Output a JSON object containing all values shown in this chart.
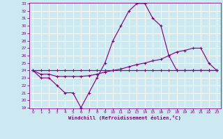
{
  "x": [
    0,
    1,
    2,
    3,
    4,
    5,
    6,
    7,
    8,
    9,
    10,
    11,
    12,
    13,
    14,
    15,
    16,
    17,
    18,
    19,
    20,
    21,
    22,
    23
  ],
  "line1": [
    24,
    23,
    23,
    22,
    21,
    21,
    19,
    21,
    23,
    25,
    28,
    30,
    32,
    33,
    33,
    31,
    30,
    26,
    24,
    24,
    24,
    24,
    24,
    24
  ],
  "line2": [
    24,
    23.5,
    23.5,
    23.2,
    23.2,
    23.2,
    23.2,
    23.3,
    23.5,
    23.8,
    24,
    24.2,
    24.5,
    24.8,
    25,
    25.3,
    25.5,
    26,
    26.5,
    26.7,
    27,
    27,
    25,
    24
  ],
  "line3": [
    24,
    24,
    24,
    24,
    24,
    24,
    24,
    24,
    24,
    24,
    24,
    24,
    24,
    24,
    24,
    24,
    24,
    24,
    24,
    24,
    24,
    24,
    24,
    24
  ],
  "xlim": [
    -0.5,
    23.5
  ],
  "ylim": [
    19,
    33
  ],
  "yticks": [
    19,
    20,
    21,
    22,
    23,
    24,
    25,
    26,
    27,
    28,
    29,
    30,
    31,
    32,
    33
  ],
  "xticks": [
    0,
    1,
    2,
    3,
    4,
    5,
    6,
    7,
    8,
    9,
    10,
    11,
    12,
    13,
    14,
    15,
    16,
    17,
    18,
    19,
    20,
    21,
    22,
    23
  ],
  "line_color": "#880088",
  "bg_color": "#cce8f0",
  "grid_color": "#ffffff",
  "xlabel": "Windchill (Refroidissement éolien,°C)"
}
